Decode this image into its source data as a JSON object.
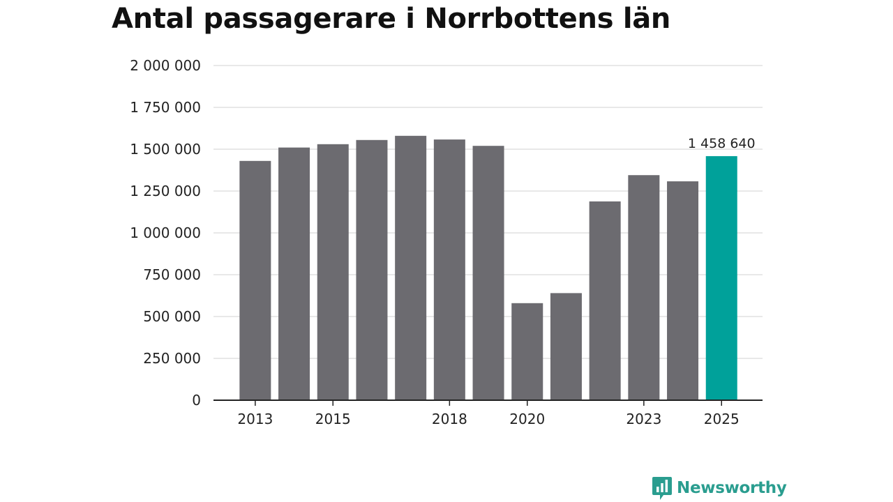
{
  "title": "Antal passagerare i Norrbottens län",
  "colors": {
    "bar": "#6c6b70",
    "highlight": "#00a19a",
    "grid": "#d9d9d9",
    "axis": "#222222",
    "brand": "#2a9d8f"
  },
  "chart_data": {
    "type": "bar",
    "title": "Antal passagerare i Norrbottens län",
    "xlabel": "",
    "ylabel": "",
    "categories": [
      "2013",
      "2014",
      "2015",
      "2016",
      "2017",
      "2018",
      "2019",
      "2020",
      "2021",
      "2022",
      "2023",
      "2024",
      "2025"
    ],
    "x_tick_labels": [
      "2013",
      "2015",
      "2018",
      "2020",
      "2023",
      "2025"
    ],
    "values": [
      1430000,
      1510000,
      1530000,
      1555000,
      1580000,
      1558000,
      1520000,
      580000,
      640000,
      1188000,
      1345000,
      1308000,
      1458640
    ],
    "highlight_index": 12,
    "highlight_label": "1 458 640",
    "ylim": [
      0,
      2000000
    ],
    "yticks": [
      0,
      250000,
      500000,
      750000,
      1000000,
      1250000,
      1500000,
      1750000,
      2000000
    ],
    "ytick_labels": [
      "0",
      "250 000",
      "500 000",
      "750 000",
      "1 000 000",
      "1 250 000",
      "1 500 000",
      "1 750 000",
      "2 000 000"
    ],
    "grid": true
  },
  "brand": {
    "name": "Newsworthy",
    "icon": "newsworthy-logo-icon"
  }
}
